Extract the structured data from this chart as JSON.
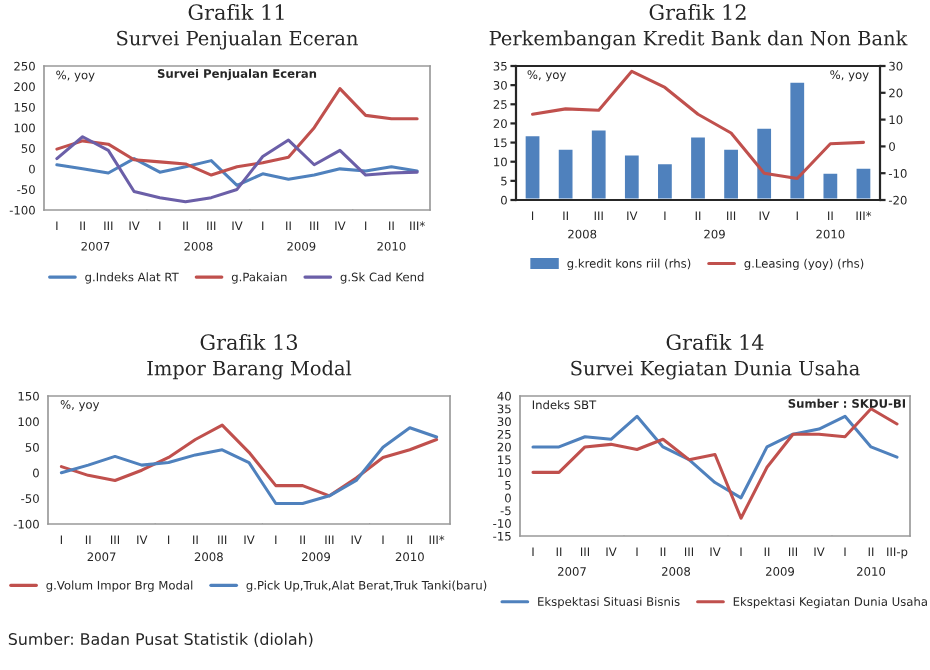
{
  "chart_data": [
    {
      "type": "line",
      "title": "Grafik 11",
      "subtitle": "Survei Penjualan Eceran",
      "ylabel": "%, yoy",
      "categories": [
        "I",
        "II",
        "III",
        "IV",
        "I",
        "II",
        "III",
        "IV",
        "I",
        "II",
        "III",
        "IV",
        "I",
        "II",
        "III*"
      ],
      "series": [
        {
          "name": "g.Indeks Alat RT",
          "color": "#4f81bd",
          "values": [
            10,
            0,
            -10,
            25,
            -8,
            5,
            20,
            -40,
            -12,
            -25,
            -15,
            0,
            -5,
            5,
            -5
          ]
        },
        {
          "name": "g.Pakaian",
          "color": "#c0504d",
          "values": [
            48,
            68,
            60,
            22,
            17,
            12,
            -15,
            5,
            15,
            28,
            100,
            195,
            130,
            122,
            122
          ]
        },
        {
          "name": "g.Sk Cad Kend",
          "color": "#6b5fa8",
          "values": [
            25,
            78,
            45,
            -55,
            -70,
            -80,
            -70,
            -50,
            30,
            70,
            10,
            45,
            -15,
            -10,
            -8
          ]
        }
      ],
      "ylim": [
        -100,
        250
      ],
      "yticks": [
        -100,
        -50,
        0,
        50,
        100,
        150,
        200,
        250
      ],
      "grid": false,
      "legend": "bottom",
      "annotations": [
        "2007",
        "2008",
        "2009",
        "2010",
        "Survei Penjualan Eceran"
      ]
    },
    {
      "type": "bar",
      "title": "Grafik 12",
      "subtitle": "Perkembangan Kredit Bank dan Non Bank",
      "ylabel": "%, yoy",
      "y2label": "%, yoy",
      "categories": [
        "I",
        "II",
        "III",
        "IV",
        "I",
        "II",
        "III",
        "IV",
        "I",
        "II",
        "III*"
      ],
      "series": [
        {
          "name": "g.kredit kons riil (rhs)",
          "color": "#4f81bd",
          "values": [
            17,
            13.5,
            18.5,
            12,
            9.7,
            16.7,
            13.5,
            19,
            31,
            7.2,
            8.5
          ]
        },
        {
          "name": "g.Leasing (yoy) (rhs)",
          "type": "line",
          "axis": "y2",
          "color": "#c0504d",
          "values": [
            12,
            14,
            13.5,
            28,
            22,
            12,
            5,
            -10,
            -12,
            1,
            1.5
          ]
        }
      ],
      "ylim": [
        0,
        35
      ],
      "yticks": [
        0,
        5,
        10,
        15,
        20,
        25,
        30,
        35
      ],
      "y2lim": [
        -20,
        30
      ],
      "y2ticks": [
        -20,
        -10,
        0,
        10,
        20,
        30
      ],
      "grid": false,
      "legend": "bottom",
      "annotations": [
        "2008",
        "209",
        "2010"
      ]
    },
    {
      "type": "line",
      "title": "Grafik 13",
      "subtitle": "Impor Barang Modal",
      "ylabel": "%, yoy",
      "categories": [
        "I",
        "II",
        "III",
        "IV",
        "I",
        "II",
        "III",
        "IV",
        "I",
        "II",
        "III",
        "IV",
        "I",
        "II",
        "III*"
      ],
      "series": [
        {
          "name": "g.Volum Impor Brg Modal",
          "color": "#c0504d",
          "values": [
            12,
            -5,
            -15,
            5,
            30,
            65,
            93,
            40,
            -25,
            -25,
            -45,
            -10,
            30,
            45,
            65
          ]
        },
        {
          "name": "g.Pick Up,Truk,Alat Berat,Truk Tanki(baru)",
          "color": "#4f81bd",
          "values": [
            0,
            15,
            32,
            15,
            20,
            35,
            45,
            20,
            -60,
            -60,
            -45,
            -15,
            50,
            88,
            70
          ]
        }
      ],
      "ylim": [
        -100,
        150
      ],
      "yticks": [
        -100,
        -50,
        0,
        50,
        100,
        150
      ],
      "grid": false,
      "legend": "bottom",
      "annotations": [
        "2007",
        "2008",
        "2009",
        "2010",
        "Sumber: Badan Pusat Statistik (diolah)"
      ]
    },
    {
      "type": "line",
      "title": "Grafik 14",
      "subtitle": "Survei Kegiatan Dunia Usaha",
      "ylabel": "Indeks SBT",
      "categories": [
        "I",
        "II",
        "III",
        "IV",
        "I",
        "II",
        "III",
        "IV",
        "I",
        "II",
        "III",
        "IV",
        "I",
        "II",
        "III-p"
      ],
      "series": [
        {
          "name": "Ekspektasi Situasi Bisnis",
          "color": "#4f81bd",
          "values": [
            20,
            20,
            24,
            23,
            32,
            20,
            15,
            6,
            0,
            20,
            25,
            27,
            32,
            20,
            16
          ]
        },
        {
          "name": "Ekspektasi Kegiatan Dunia Usaha",
          "color": "#c0504d",
          "values": [
            10,
            10,
            20,
            21,
            19,
            23,
            15,
            17,
            -8,
            12,
            25,
            25,
            24,
            35,
            29
          ]
        }
      ],
      "ylim": [
        -15,
        40
      ],
      "yticks": [
        -15,
        -10,
        -5,
        0,
        5,
        10,
        15,
        20,
        25,
        30,
        35,
        40
      ],
      "grid": false,
      "legend": "bottom",
      "annotations": [
        "2007",
        "2008",
        "2009",
        "2010",
        "Sumber : SKDU-BI"
      ]
    }
  ]
}
